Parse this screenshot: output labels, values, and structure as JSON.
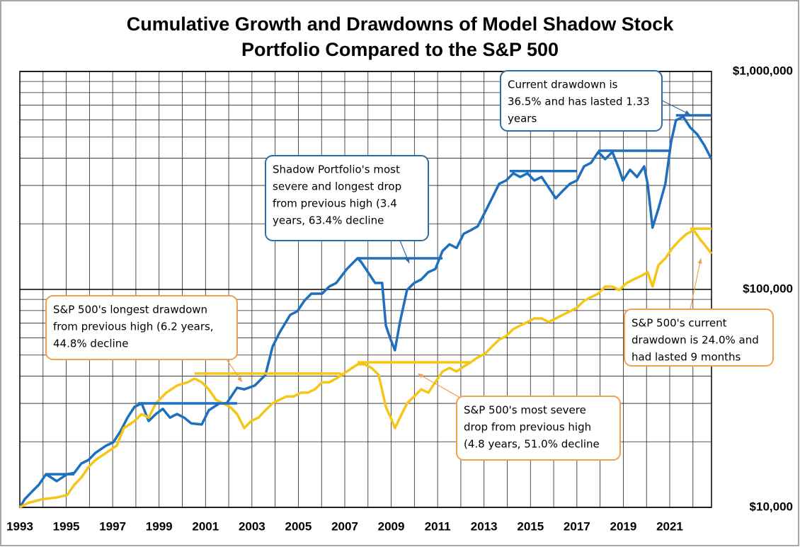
{
  "chart_data": {
    "type": "line",
    "title": [
      "Cumulative Growth and Drawdowns of Model Shadow Stock",
      "Portfolio Compared to the S&P 500"
    ],
    "log_scale_y": true,
    "grid": true,
    "xlim": [
      1993,
      2022.8
    ],
    "xticks": [
      1993,
      1995,
      1997,
      1999,
      2001,
      2003,
      2005,
      2007,
      2009,
      2011,
      2013,
      2015,
      2017,
      2019,
      2021
    ],
    "xminorticks": [
      1994,
      1996,
      1998,
      2000,
      2002,
      2004,
      2006,
      2008,
      2010,
      2012,
      2014,
      2016,
      2018,
      2020,
      2022
    ],
    "ylim": [
      10000,
      1000000
    ],
    "yticks": [
      {
        "value": 10000,
        "label": "$10,000"
      },
      {
        "value": 100000,
        "label": "$100,000"
      },
      {
        "value": 1000000,
        "label": "$1,000,000"
      }
    ],
    "yminorticks": [
      20000,
      30000,
      40000,
      50000,
      60000,
      70000,
      80000,
      90000,
      200000,
      300000,
      400000,
      500000,
      600000,
      700000,
      800000,
      900000
    ],
    "series": [
      {
        "color": "#1f6fbf",
        "x": [
          1993.0,
          1993.21,
          1993.52,
          1993.82,
          1994.13,
          1994.59,
          1995.04,
          1995.35,
          1995.65,
          1995.96,
          1996.26,
          1996.72,
          1997.03,
          1997.33,
          1997.64,
          1997.94,
          1998.25,
          1998.55,
          1998.86,
          1999.16,
          1999.47,
          1999.77,
          2000.08,
          2000.38,
          2000.84,
          2001.14,
          2001.6,
          2001.91,
          2002.36,
          2002.67,
          2003.12,
          2003.58,
          2003.89,
          2004.19,
          2004.65,
          2004.95,
          2005.26,
          2005.56,
          2006.02,
          2006.33,
          2006.63,
          2007.09,
          2007.55,
          2007.7,
          2008.0,
          2008.31,
          2008.61,
          2008.77,
          2008.98,
          2009.16,
          2009.38,
          2009.68,
          2009.99,
          2010.29,
          2010.6,
          2010.9,
          2011.21,
          2011.51,
          2011.82,
          2012.12,
          2012.43,
          2012.73,
          2013.04,
          2013.34,
          2013.65,
          2013.95,
          2014.26,
          2014.56,
          2014.87,
          2015.17,
          2015.48,
          2015.78,
          2016.09,
          2016.39,
          2016.7,
          2017.0,
          2017.31,
          2017.61,
          2017.92,
          2018.22,
          2018.53,
          2018.83,
          2018.98,
          2019.29,
          2019.59,
          2019.9,
          2020.05,
          2020.26,
          2020.51,
          2020.81,
          2021.06,
          2021.27,
          2021.58,
          2021.88,
          2022.19,
          2022.49,
          2022.8
        ],
        "values": [
          10000,
          10900,
          11800,
          12700,
          14200,
          13200,
          14200,
          14400,
          15900,
          16500,
          17800,
          19200,
          19900,
          22300,
          25800,
          28900,
          30000,
          24900,
          26800,
          28300,
          25800,
          26800,
          25800,
          24300,
          24000,
          27900,
          30000,
          30000,
          35400,
          34800,
          36200,
          40500,
          54600,
          63400,
          76400,
          79300,
          88700,
          95600,
          95600,
          103000,
          107000,
          124000,
          139000,
          134000,
          120000,
          107000,
          107000,
          68300,
          58800,
          52600,
          70900,
          99300,
          107000,
          111000,
          120000,
          124000,
          150000,
          161000,
          155000,
          180000,
          187000,
          195000,
          226000,
          262000,
          305000,
          316000,
          341000,
          328000,
          341000,
          316000,
          328000,
          294000,
          262000,
          283000,
          305000,
          316000,
          367000,
          381000,
          427000,
          396000,
          427000,
          354000,
          316000,
          354000,
          328000,
          367000,
          305000,
          192000,
          234000,
          305000,
          477000,
          597000,
          620000,
          554000,
          514000,
          459000,
          396000
        ]
      },
      {
        "color": "#f5c518",
        "x": [
          1993.0,
          1993.37,
          1993.98,
          1994.59,
          1995.04,
          1995.35,
          1995.65,
          1995.96,
          1996.26,
          1996.72,
          1997.18,
          1997.48,
          1997.94,
          1998.25,
          1998.55,
          1998.86,
          1999.31,
          1999.77,
          2000.23,
          2000.53,
          2000.84,
          2001.14,
          2001.45,
          2001.75,
          2002.06,
          2002.36,
          2002.67,
          2002.97,
          2003.28,
          2003.58,
          2003.89,
          2004.19,
          2004.5,
          2004.8,
          2005.11,
          2005.41,
          2005.71,
          2006.02,
          2006.33,
          2006.63,
          2007.09,
          2007.55,
          2007.85,
          2008.16,
          2008.46,
          2008.77,
          2008.98,
          2009.16,
          2009.38,
          2009.68,
          2009.99,
          2010.29,
          2010.6,
          2010.9,
          2011.21,
          2011.51,
          2011.82,
          2012.12,
          2012.43,
          2012.73,
          2013.04,
          2013.34,
          2013.65,
          2013.95,
          2014.26,
          2014.56,
          2014.87,
          2015.17,
          2015.48,
          2015.78,
          2016.09,
          2016.39,
          2016.7,
          2017.0,
          2017.31,
          2017.61,
          2017.92,
          2018.22,
          2018.53,
          2018.83,
          2019.14,
          2019.44,
          2019.75,
          2020.05,
          2020.26,
          2020.51,
          2020.81,
          2021.12,
          2021.42,
          2021.73,
          2022.03,
          2022.34,
          2022.49,
          2022.8
        ],
        "values": [
          10000,
          10500,
          10900,
          11100,
          11400,
          12700,
          13700,
          15300,
          16500,
          17800,
          19200,
          23100,
          24900,
          26800,
          25800,
          30000,
          33600,
          36200,
          37500,
          39000,
          37500,
          34800,
          31200,
          30000,
          28900,
          26800,
          23100,
          24900,
          25800,
          27900,
          30000,
          31200,
          32300,
          32300,
          33600,
          33600,
          34800,
          37500,
          37500,
          39000,
          42000,
          45300,
          45300,
          43600,
          40500,
          28900,
          25800,
          23100,
          25800,
          30000,
          32300,
          34800,
          33600,
          37500,
          42000,
          43600,
          42000,
          44300,
          46300,
          48800,
          50600,
          54600,
          58800,
          61100,
          65800,
          68300,
          70900,
          73600,
          73600,
          70900,
          73600,
          76400,
          79300,
          82400,
          88700,
          92100,
          95600,
          103000,
          103000,
          99300,
          107000,
          111000,
          115000,
          120000,
          103000,
          129000,
          139000,
          155000,
          168000,
          180000,
          187000,
          168000,
          161000,
          146000
        ]
      },
      {
        "color": "#1f6fbf",
        "x": [
          1994.13,
          1995.35,
          1995.36,
          1998.09,
          2002.36,
          2002.37,
          2007.55,
          2011.21,
          2011.22,
          2014.1,
          2017.0,
          2017.01,
          2017.92,
          2020.97,
          2020.98,
          2021.27,
          2022.8
        ],
        "values": [
          14200,
          14200,
          null,
          30000,
          30000,
          null,
          139000,
          139000,
          null,
          349000,
          349000,
          null,
          433000,
          433000,
          null,
          629000,
          629000
        ]
      },
      {
        "color": "#f5c518",
        "x": [
          2000.53,
          2006.85,
          2006.86,
          2007.55,
          2012.43,
          2012.44,
          2021.88,
          2022.8
        ],
        "values": [
          41100,
          41100,
          null,
          46300,
          46300,
          null,
          190000,
          190000
        ]
      }
    ],
    "annotations": [
      {
        "lines": [
          "Current drawdown is",
          "36.5% and has lasted 1.33",
          "years"
        ],
        "color": "#2e6da4"
      },
      {
        "lines": [
          "Shadow Portfolio's most",
          "severe and longest drop",
          "from previous high (3.4",
          "years, 63.4% decline"
        ],
        "color": "#2e6da4"
      },
      {
        "lines": [
          "S&P 500's longest drawdown",
          "from previous high (6.2 years,",
          "44.8% decline"
        ],
        "color": "#f0a050"
      },
      {
        "lines": [
          "S&P 500's most severe",
          "drop from previous high",
          "(4.8 years, 51.0% decline"
        ],
        "color": "#f0a050"
      },
      {
        "lines": [
          "S&P 500's current",
          "drawdown is 24.0% and",
          "had lasted 9 months"
        ],
        "color": "#f0a050"
      }
    ]
  }
}
